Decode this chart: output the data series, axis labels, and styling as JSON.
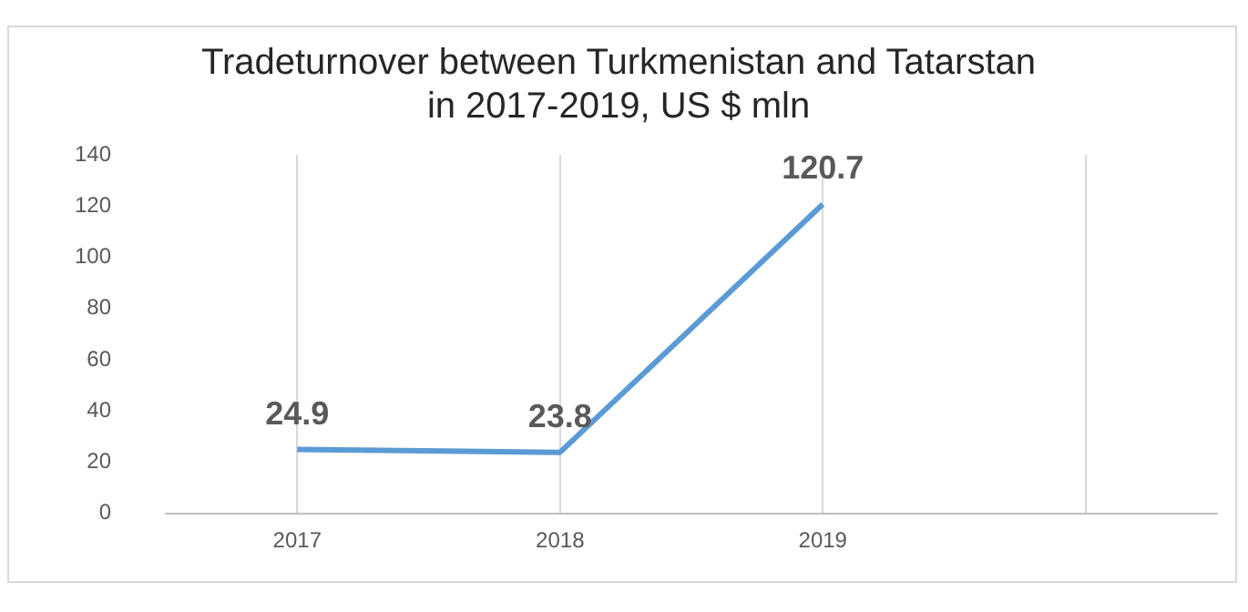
{
  "chart_data": {
    "type": "line",
    "title": "Tradeturnover between Turkmenistan and Tatarstan\nin 2017-2019, US $ mln",
    "categories": [
      "2017",
      "2018",
      "2019",
      null
    ],
    "series": [
      {
        "color": "#5b9bd5",
        "values": [
          24.9,
          23.8,
          120.7,
          null
        ]
      }
    ],
    "ylim": [
      0,
      140
    ],
    "yticks": [
      0,
      20,
      40,
      60,
      80,
      100,
      120,
      140
    ],
    "grid": "x",
    "legend": false,
    "marker": "none",
    "data_labels": true
  }
}
